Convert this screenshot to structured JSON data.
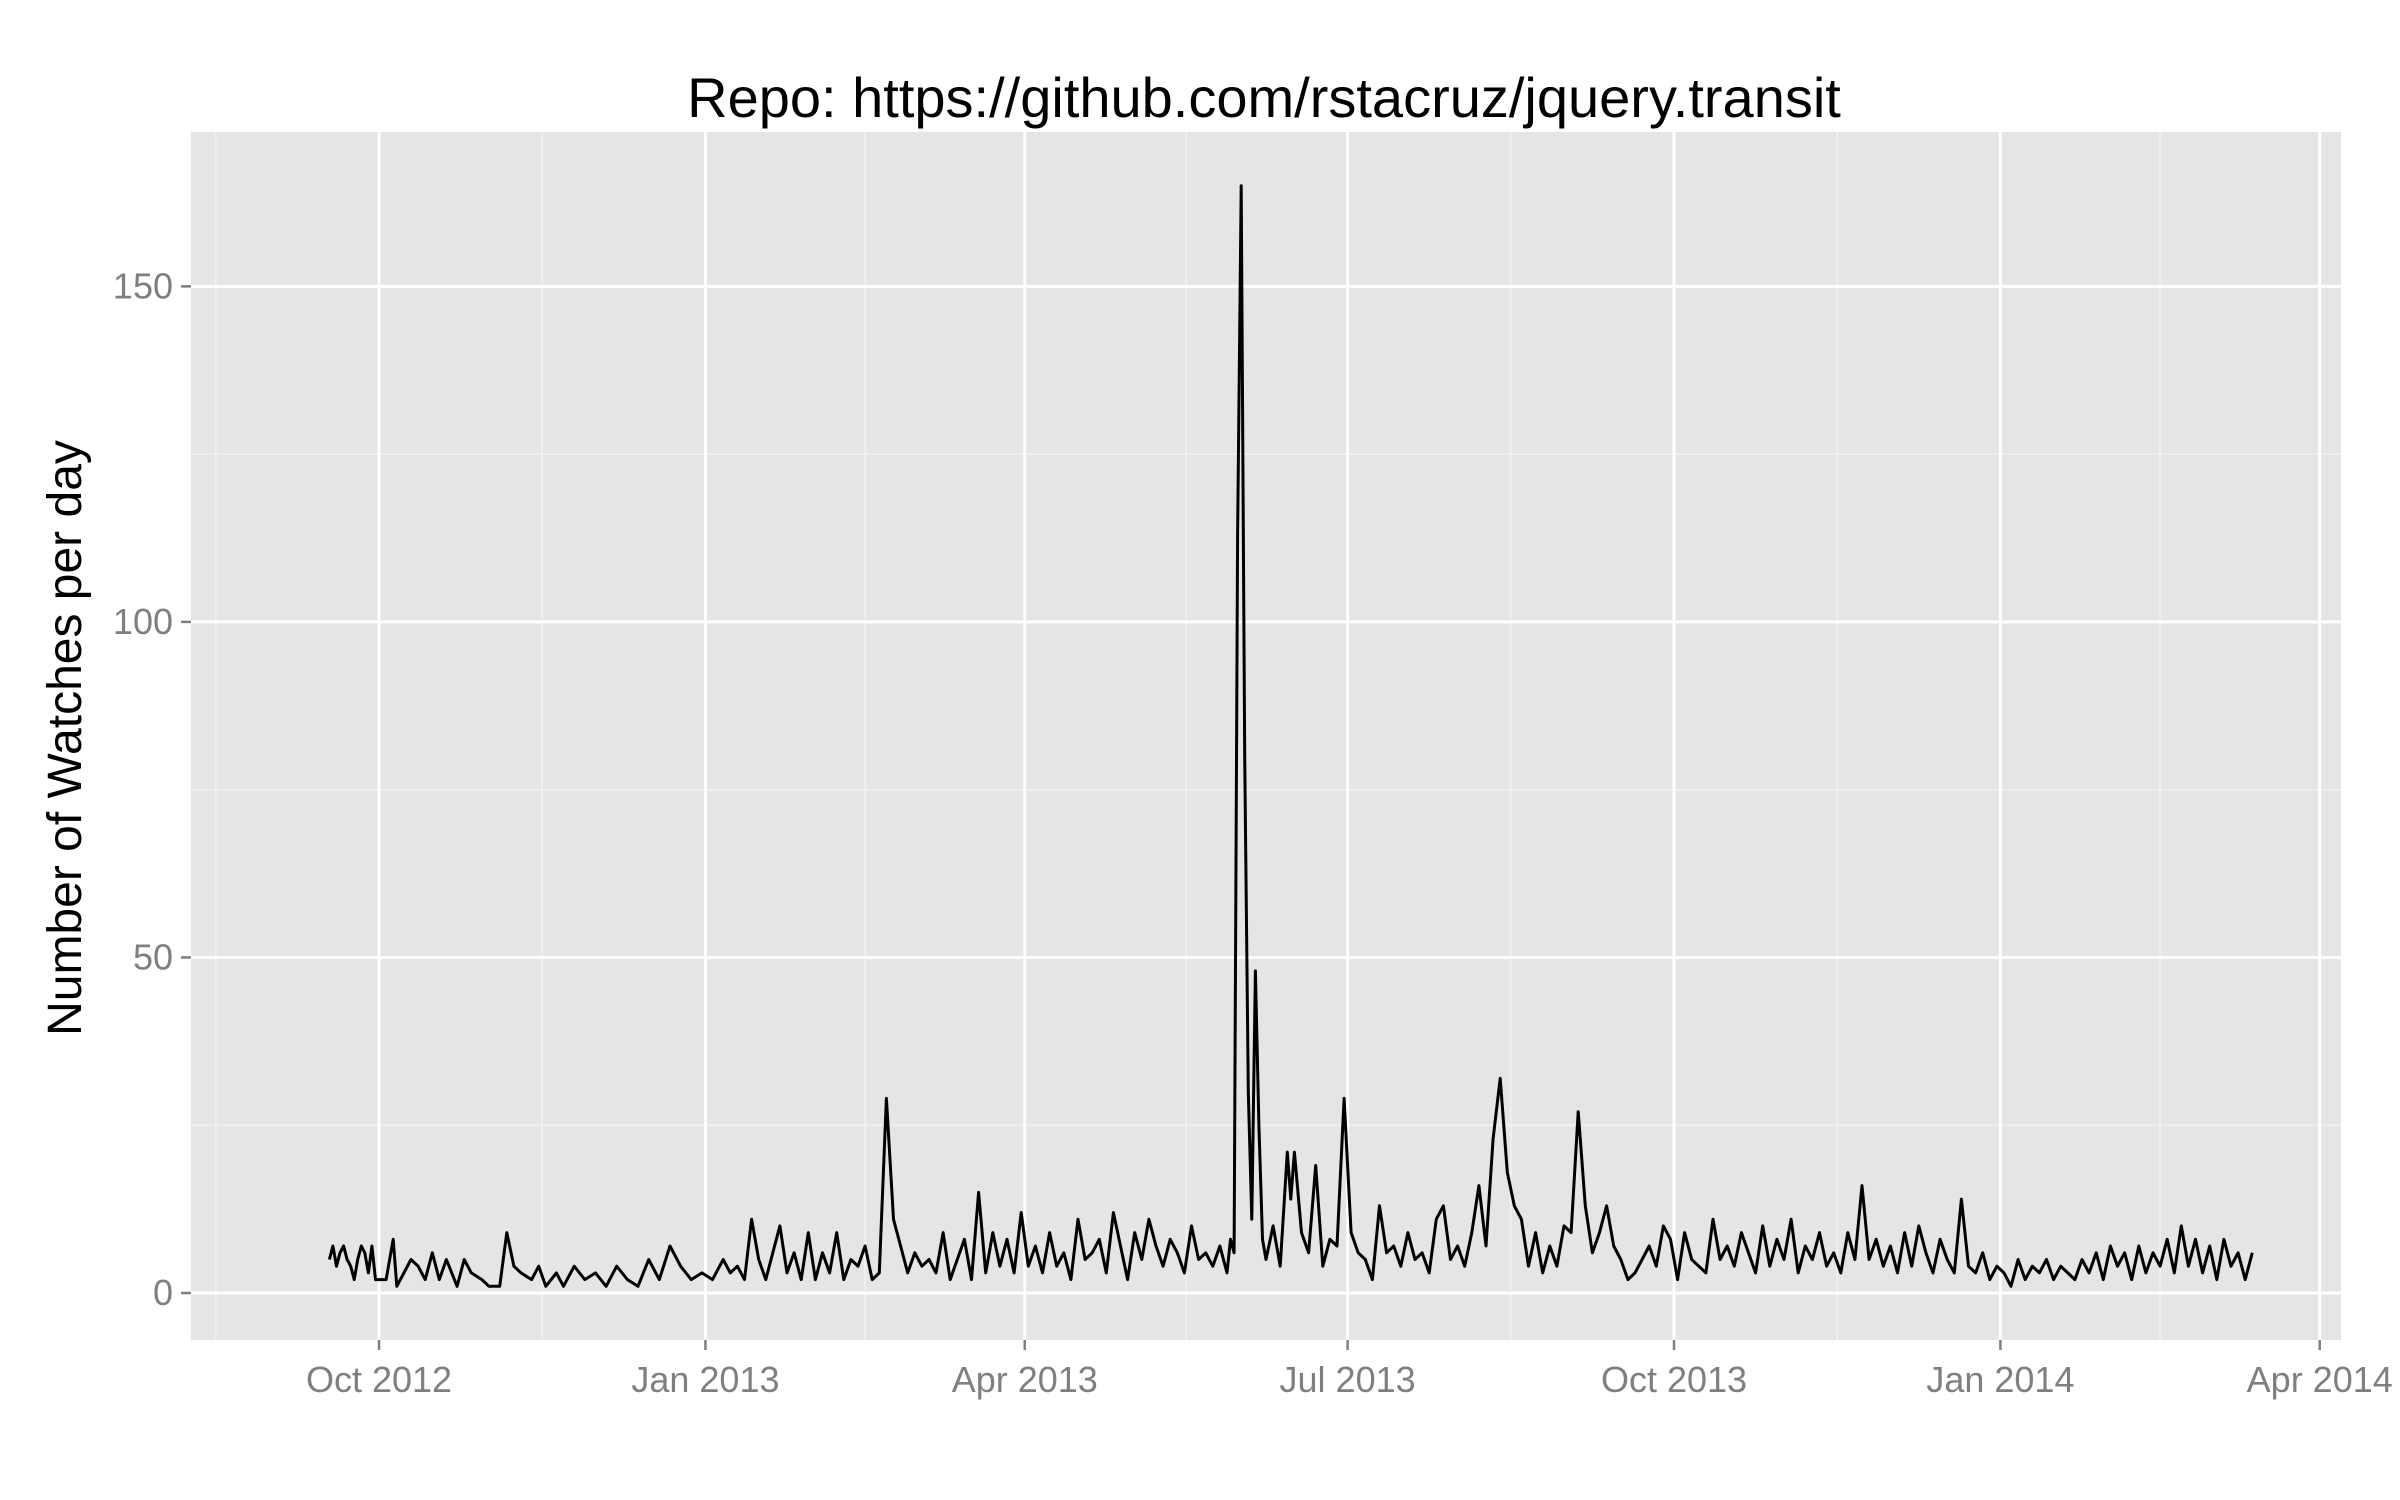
{
  "chart_data": {
    "type": "line",
    "title": "Repo: https://github.com/rstacruz/jquery.transit",
    "xlabel": "",
    "ylabel": "Number of Watches per day",
    "xlim": [
      "2012-08-09",
      "2014-04-07"
    ],
    "ylim": [
      -7,
      173
    ],
    "grid": true,
    "x_ticks": [
      {
        "date": "2012-10-01",
        "label": "Oct 2012"
      },
      {
        "date": "2013-01-01",
        "label": "Jan 2013"
      },
      {
        "date": "2013-04-01",
        "label": "Apr 2013"
      },
      {
        "date": "2013-07-01",
        "label": "Jul 2013"
      },
      {
        "date": "2013-10-01",
        "label": "Oct 2013"
      },
      {
        "date": "2014-01-01",
        "label": "Jan 2014"
      },
      {
        "date": "2014-04-01",
        "label": "Apr 2014"
      }
    ],
    "y_ticks": [
      0,
      50,
      100,
      150
    ],
    "line_color": "#000000",
    "panel_background": "#e5e5e5",
    "grid_color": "#ffffff",
    "series": [
      {
        "points": [
          [
            "2012-09-17",
            5
          ],
          [
            "2012-09-18",
            7
          ],
          [
            "2012-09-19",
            4
          ],
          [
            "2012-09-20",
            6
          ],
          [
            "2012-09-21",
            7
          ],
          [
            "2012-09-22",
            5
          ],
          [
            "2012-09-23",
            4
          ],
          [
            "2012-09-24",
            2
          ],
          [
            "2012-09-25",
            5
          ],
          [
            "2012-09-26",
            7
          ],
          [
            "2012-09-27",
            6
          ],
          [
            "2012-09-28",
            3
          ],
          [
            "2012-09-29",
            7
          ],
          [
            "2012-09-30",
            2
          ],
          [
            "2012-10-03",
            2
          ],
          [
            "2012-10-05",
            8
          ],
          [
            "2012-10-06",
            1
          ],
          [
            "2012-10-08",
            3
          ],
          [
            "2012-10-10",
            5
          ],
          [
            "2012-10-12",
            4
          ],
          [
            "2012-10-14",
            2
          ],
          [
            "2012-10-16",
            6
          ],
          [
            "2012-10-18",
            2
          ],
          [
            "2012-10-20",
            5
          ],
          [
            "2012-10-23",
            1
          ],
          [
            "2012-10-25",
            5
          ],
          [
            "2012-10-27",
            3
          ],
          [
            "2012-10-30",
            2
          ],
          [
            "2012-11-01",
            1
          ],
          [
            "2012-11-04",
            1
          ],
          [
            "2012-11-06",
            9
          ],
          [
            "2012-11-08",
            4
          ],
          [
            "2012-11-10",
            3
          ],
          [
            "2012-11-13",
            2
          ],
          [
            "2012-11-15",
            4
          ],
          [
            "2012-11-17",
            1
          ],
          [
            "2012-11-20",
            3
          ],
          [
            "2012-11-22",
            1
          ],
          [
            "2012-11-25",
            4
          ],
          [
            "2012-11-28",
            2
          ],
          [
            "2012-12-01",
            3
          ],
          [
            "2012-12-04",
            1
          ],
          [
            "2012-12-07",
            4
          ],
          [
            "2012-12-10",
            2
          ],
          [
            "2012-12-13",
            1
          ],
          [
            "2012-12-16",
            5
          ],
          [
            "2012-12-19",
            2
          ],
          [
            "2012-12-22",
            7
          ],
          [
            "2012-12-25",
            4
          ],
          [
            "2012-12-28",
            2
          ],
          [
            "2012-12-31",
            3
          ],
          [
            "2013-01-03",
            2
          ],
          [
            "2013-01-06",
            5
          ],
          [
            "2013-01-08",
            3
          ],
          [
            "2013-01-10",
            4
          ],
          [
            "2013-01-12",
            2
          ],
          [
            "2013-01-14",
            11
          ],
          [
            "2013-01-16",
            5
          ],
          [
            "2013-01-18",
            2
          ],
          [
            "2013-01-20",
            6
          ],
          [
            "2013-01-22",
            10
          ],
          [
            "2013-01-24",
            3
          ],
          [
            "2013-01-26",
            6
          ],
          [
            "2013-01-28",
            2
          ],
          [
            "2013-01-30",
            9
          ],
          [
            "2013-02-01",
            2
          ],
          [
            "2013-02-03",
            6
          ],
          [
            "2013-02-05",
            3
          ],
          [
            "2013-02-07",
            9
          ],
          [
            "2013-02-09",
            2
          ],
          [
            "2013-02-11",
            5
          ],
          [
            "2013-02-13",
            4
          ],
          [
            "2013-02-15",
            7
          ],
          [
            "2013-02-17",
            2
          ],
          [
            "2013-02-19",
            3
          ],
          [
            "2013-02-21",
            29
          ],
          [
            "2013-02-23",
            11
          ],
          [
            "2013-02-25",
            7
          ],
          [
            "2013-02-27",
            3
          ],
          [
            "2013-03-01",
            6
          ],
          [
            "2013-03-03",
            4
          ],
          [
            "2013-03-05",
            5
          ],
          [
            "2013-03-07",
            3
          ],
          [
            "2013-03-09",
            9
          ],
          [
            "2013-03-11",
            2
          ],
          [
            "2013-03-13",
            5
          ],
          [
            "2013-03-15",
            8
          ],
          [
            "2013-03-17",
            2
          ],
          [
            "2013-03-19",
            15
          ],
          [
            "2013-03-21",
            3
          ],
          [
            "2013-03-23",
            9
          ],
          [
            "2013-03-25",
            4
          ],
          [
            "2013-03-27",
            8
          ],
          [
            "2013-03-29",
            3
          ],
          [
            "2013-03-31",
            12
          ],
          [
            "2013-04-02",
            4
          ],
          [
            "2013-04-04",
            7
          ],
          [
            "2013-04-06",
            3
          ],
          [
            "2013-04-08",
            9
          ],
          [
            "2013-04-10",
            4
          ],
          [
            "2013-04-12",
            6
          ],
          [
            "2013-04-14",
            2
          ],
          [
            "2013-04-16",
            11
          ],
          [
            "2013-04-18",
            5
          ],
          [
            "2013-04-20",
            6
          ],
          [
            "2013-04-22",
            8
          ],
          [
            "2013-04-24",
            3
          ],
          [
            "2013-04-26",
            12
          ],
          [
            "2013-04-28",
            7
          ],
          [
            "2013-04-30",
            2
          ],
          [
            "2013-05-02",
            9
          ],
          [
            "2013-05-04",
            5
          ],
          [
            "2013-05-06",
            11
          ],
          [
            "2013-05-08",
            7
          ],
          [
            "2013-05-10",
            4
          ],
          [
            "2013-05-12",
            8
          ],
          [
            "2013-05-14",
            6
          ],
          [
            "2013-05-16",
            3
          ],
          [
            "2013-05-18",
            10
          ],
          [
            "2013-05-20",
            5
          ],
          [
            "2013-05-22",
            6
          ],
          [
            "2013-05-24",
            4
          ],
          [
            "2013-05-26",
            7
          ],
          [
            "2013-05-28",
            3
          ],
          [
            "2013-05-29",
            8
          ],
          [
            "2013-05-30",
            6
          ],
          [
            "2013-05-31",
            113
          ],
          [
            "2013-06-01",
            165
          ],
          [
            "2013-06-02",
            80
          ],
          [
            "2013-06-03",
            30
          ],
          [
            "2013-06-04",
            11
          ],
          [
            "2013-06-05",
            48
          ],
          [
            "2013-06-06",
            25
          ],
          [
            "2013-06-07",
            8
          ],
          [
            "2013-06-08",
            5
          ],
          [
            "2013-06-10",
            10
          ],
          [
            "2013-06-12",
            4
          ],
          [
            "2013-06-14",
            21
          ],
          [
            "2013-06-15",
            14
          ],
          [
            "2013-06-16",
            21
          ],
          [
            "2013-06-18",
            9
          ],
          [
            "2013-06-20",
            6
          ],
          [
            "2013-06-22",
            19
          ],
          [
            "2013-06-24",
            4
          ],
          [
            "2013-06-26",
            8
          ],
          [
            "2013-06-28",
            7
          ],
          [
            "2013-06-30",
            29
          ],
          [
            "2013-07-02",
            9
          ],
          [
            "2013-07-04",
            6
          ],
          [
            "2013-07-06",
            5
          ],
          [
            "2013-07-08",
            2
          ],
          [
            "2013-07-10",
            13
          ],
          [
            "2013-07-12",
            6
          ],
          [
            "2013-07-14",
            7
          ],
          [
            "2013-07-16",
            4
          ],
          [
            "2013-07-18",
            9
          ],
          [
            "2013-07-20",
            5
          ],
          [
            "2013-07-22",
            6
          ],
          [
            "2013-07-24",
            3
          ],
          [
            "2013-07-26",
            11
          ],
          [
            "2013-07-28",
            13
          ],
          [
            "2013-07-30",
            5
          ],
          [
            "2013-08-01",
            7
          ],
          [
            "2013-08-03",
            4
          ],
          [
            "2013-08-05",
            9
          ],
          [
            "2013-08-07",
            16
          ],
          [
            "2013-08-09",
            7
          ],
          [
            "2013-08-11",
            23
          ],
          [
            "2013-08-13",
            32
          ],
          [
            "2013-08-15",
            18
          ],
          [
            "2013-08-17",
            13
          ],
          [
            "2013-08-19",
            11
          ],
          [
            "2013-08-21",
            4
          ],
          [
            "2013-08-23",
            9
          ],
          [
            "2013-08-25",
            3
          ],
          [
            "2013-08-27",
            7
          ],
          [
            "2013-08-29",
            4
          ],
          [
            "2013-08-31",
            10
          ],
          [
            "2013-09-02",
            9
          ],
          [
            "2013-09-04",
            27
          ],
          [
            "2013-09-06",
            13
          ],
          [
            "2013-09-08",
            6
          ],
          [
            "2013-09-10",
            9
          ],
          [
            "2013-09-12",
            13
          ],
          [
            "2013-09-14",
            7
          ],
          [
            "2013-09-16",
            5
          ],
          [
            "2013-09-18",
            2
          ],
          [
            "2013-09-20",
            3
          ],
          [
            "2013-09-22",
            5
          ],
          [
            "2013-09-24",
            7
          ],
          [
            "2013-09-26",
            4
          ],
          [
            "2013-09-28",
            10
          ],
          [
            "2013-09-30",
            8
          ],
          [
            "2013-10-02",
            2
          ],
          [
            "2013-10-04",
            9
          ],
          [
            "2013-10-06",
            5
          ],
          [
            "2013-10-08",
            4
          ],
          [
            "2013-10-10",
            3
          ],
          [
            "2013-10-12",
            11
          ],
          [
            "2013-10-14",
            5
          ],
          [
            "2013-10-16",
            7
          ],
          [
            "2013-10-18",
            4
          ],
          [
            "2013-10-20",
            9
          ],
          [
            "2013-10-22",
            6
          ],
          [
            "2013-10-24",
            3
          ],
          [
            "2013-10-26",
            10
          ],
          [
            "2013-10-28",
            4
          ],
          [
            "2013-10-30",
            8
          ],
          [
            "2013-11-01",
            5
          ],
          [
            "2013-11-03",
            11
          ],
          [
            "2013-11-05",
            3
          ],
          [
            "2013-11-07",
            7
          ],
          [
            "2013-11-09",
            5
          ],
          [
            "2013-11-11",
            9
          ],
          [
            "2013-11-13",
            4
          ],
          [
            "2013-11-15",
            6
          ],
          [
            "2013-11-17",
            3
          ],
          [
            "2013-11-19",
            9
          ],
          [
            "2013-11-21",
            5
          ],
          [
            "2013-11-23",
            16
          ],
          [
            "2013-11-25",
            5
          ],
          [
            "2013-11-27",
            8
          ],
          [
            "2013-11-29",
            4
          ],
          [
            "2013-12-01",
            7
          ],
          [
            "2013-12-03",
            3
          ],
          [
            "2013-12-05",
            9
          ],
          [
            "2013-12-07",
            4
          ],
          [
            "2013-12-09",
            10
          ],
          [
            "2013-12-11",
            6
          ],
          [
            "2013-12-13",
            3
          ],
          [
            "2013-12-15",
            8
          ],
          [
            "2013-12-17",
            5
          ],
          [
            "2013-12-19",
            3
          ],
          [
            "2013-12-21",
            14
          ],
          [
            "2013-12-23",
            4
          ],
          [
            "2013-12-25",
            3
          ],
          [
            "2013-12-27",
            6
          ],
          [
            "2013-12-29",
            2
          ],
          [
            "2013-12-31",
            4
          ],
          [
            "2014-01-02",
            3
          ],
          [
            "2014-01-04",
            1
          ],
          [
            "2014-01-06",
            5
          ],
          [
            "2014-01-08",
            2
          ],
          [
            "2014-01-10",
            4
          ],
          [
            "2014-01-12",
            3
          ],
          [
            "2014-01-14",
            5
          ],
          [
            "2014-01-16",
            2
          ],
          [
            "2014-01-18",
            4
          ],
          [
            "2014-01-20",
            3
          ],
          [
            "2014-01-22",
            2
          ],
          [
            "2014-01-24",
            5
          ],
          [
            "2014-01-26",
            3
          ],
          [
            "2014-01-28",
            6
          ],
          [
            "2014-01-30",
            2
          ],
          [
            "2014-02-01",
            7
          ],
          [
            "2014-02-03",
            4
          ],
          [
            "2014-02-05",
            6
          ],
          [
            "2014-02-07",
            2
          ],
          [
            "2014-02-09",
            7
          ],
          [
            "2014-02-11",
            3
          ],
          [
            "2014-02-13",
            6
          ],
          [
            "2014-02-15",
            4
          ],
          [
            "2014-02-17",
            8
          ],
          [
            "2014-02-19",
            3
          ],
          [
            "2014-02-21",
            10
          ],
          [
            "2014-02-23",
            4
          ],
          [
            "2014-02-25",
            8
          ],
          [
            "2014-02-27",
            3
          ],
          [
            "2014-03-01",
            7
          ],
          [
            "2014-03-03",
            2
          ],
          [
            "2014-03-05",
            8
          ],
          [
            "2014-03-07",
            4
          ],
          [
            "2014-03-09",
            6
          ],
          [
            "2014-03-11",
            2
          ],
          [
            "2014-03-13",
            6
          ]
        ]
      }
    ]
  }
}
